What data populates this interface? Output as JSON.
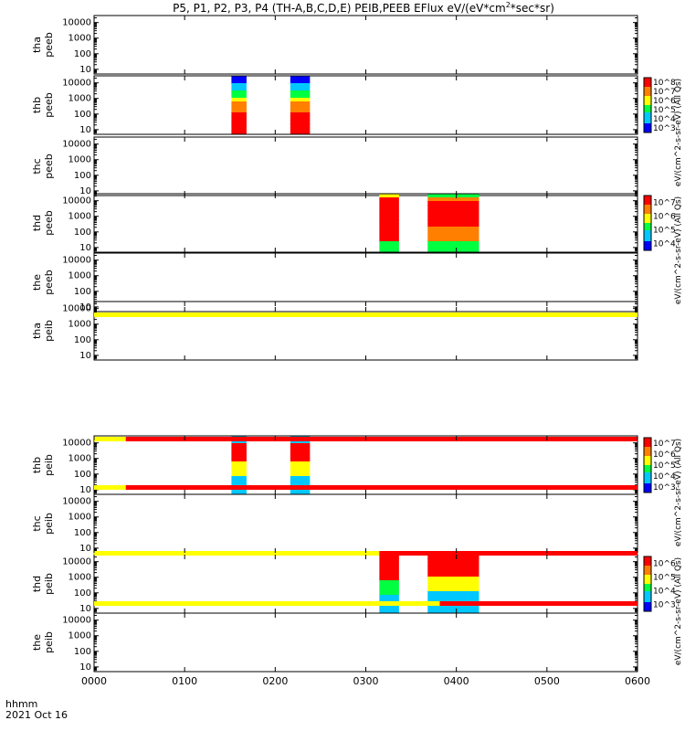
{
  "chart_data": {
    "type": "heatmap",
    "title_main": "P5, P1, P2, P3, P4 (TH-A,B,C,D,E) PEIB,PEEB EFlux eV/(eV*cm",
    "title_sup1": "2",
    "title_mid": "*sec*sr)",
    "date_label": "2021 Oct 16",
    "time_axis_label": "hhmm",
    "x_ticks": [
      "0000",
      "0100",
      "0200",
      "0300",
      "0400",
      "0500",
      "0600"
    ],
    "y_ticks": [
      "10",
      "100",
      "1000",
      "10000"
    ],
    "xlim": [
      0,
      360
    ],
    "ylim_log": [
      0.7,
      4.45
    ],
    "colorbars": [
      {
        "panel": 1,
        "labels": [
          "10^3",
          "10^4",
          "10^5",
          "10^6",
          "10^7",
          "10^8"
        ],
        "label_text": "eV/(cm^2-s-sr-eV) (All Qs)"
      },
      {
        "panel": 3,
        "labels": [
          "10^4",
          "10^5",
          "10^6",
          "10^7"
        ],
        "label_text": "eV/(cm^2-s-sr-eV) (All Qs)"
      },
      {
        "panel": 6,
        "labels": [
          "10^3",
          "10^4",
          "10^5",
          "10^6",
          "10^7"
        ],
        "label_text": "eV/(cm^2-s-sr-eV) (All Qs)"
      },
      {
        "panel": 8,
        "labels": [
          "10^3",
          "10^4",
          "10^5",
          "10^6"
        ],
        "label_text": "eV/(cm^2-s-sr-eV) (All Qs)"
      }
    ],
    "panels": [
      {
        "name1": "tha",
        "name2": "peeb",
        "blocks": []
      },
      {
        "name1": "thb",
        "name2": "peeb",
        "blocks": [
          {
            "t0": 91,
            "t1": 101,
            "profile": "electron_b"
          },
          {
            "t0": 130,
            "t1": 143,
            "profile": "electron_b"
          }
        ]
      },
      {
        "name1": "thc",
        "name2": "peeb",
        "blocks": []
      },
      {
        "name1": "thd",
        "name2": "peeb",
        "blocks": [
          {
            "t0": 189,
            "t1": 202,
            "profile": "electron_d1"
          },
          {
            "t0": 221,
            "t1": 255,
            "profile": "electron_d2"
          }
        ]
      },
      {
        "name1": "the",
        "name2": "peeb",
        "blocks": []
      },
      {
        "name1": "tha",
        "name2": "peib",
        "blocks": []
      },
      {
        "name1": "thb",
        "name2": "peib",
        "blocks": [
          {
            "t0": 91,
            "t1": 101,
            "profile": "ion_b"
          },
          {
            "t0": 130,
            "t1": 143,
            "profile": "ion_b"
          }
        ]
      },
      {
        "name1": "thc",
        "name2": "peib",
        "blocks": []
      },
      {
        "name1": "thd",
        "name2": "peib",
        "blocks": [
          {
            "t0": 189,
            "t1": 202,
            "profile": "ion_d1"
          },
          {
            "t0": 221,
            "t1": 255,
            "profile": "ion_d2"
          }
        ]
      },
      {
        "name1": "the",
        "name2": "peib",
        "blocks": []
      }
    ],
    "mode_bars": [
      {
        "after_panel": 4,
        "segments": [
          {
            "t0": 0,
            "t1": 360,
            "color": "#ffff00"
          }
        ]
      },
      {
        "after_panel": 5,
        "segments": [
          {
            "t0": 0,
            "t1": 21,
            "color": "#ffff00"
          },
          {
            "t0": 21,
            "t1": 360,
            "color": "#ff0000"
          }
        ]
      },
      {
        "after_panel": 6,
        "segments": [
          {
            "t0": 0,
            "t1": 21,
            "color": "#ffff00"
          },
          {
            "t0": 21,
            "t1": 360,
            "color": "#ff0000"
          }
        ]
      },
      {
        "after_panel": 7,
        "segments": [
          {
            "t0": 0,
            "t1": 189,
            "color": "#ffff00"
          },
          {
            "t0": 189,
            "t1": 360,
            "color": "#ff0000"
          }
        ]
      },
      {
        "after_panel": 8,
        "segments": [
          {
            "t0": 0,
            "t1": 229,
            "color": "#ffff00"
          },
          {
            "t0": 229,
            "t1": 360,
            "color": "#ff0000"
          }
        ]
      }
    ]
  }
}
